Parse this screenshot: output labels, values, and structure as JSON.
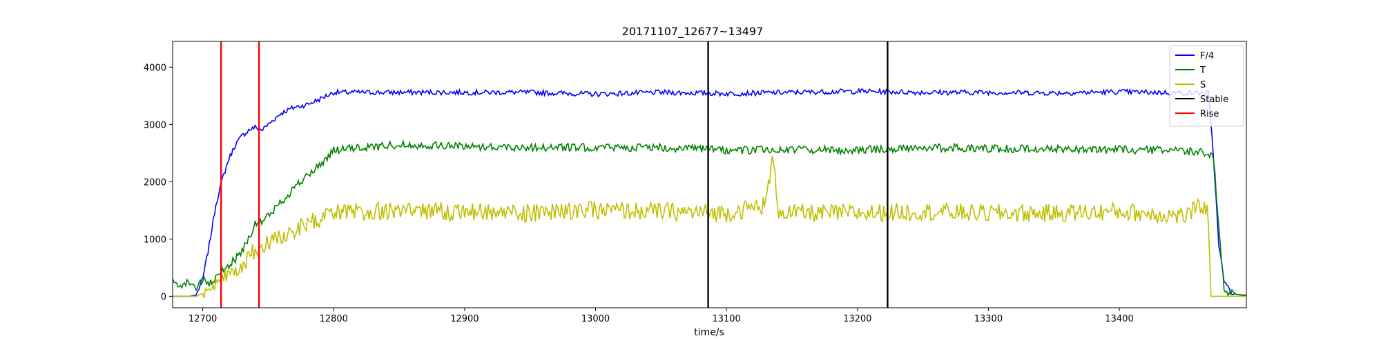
{
  "chart_data": {
    "type": "line",
    "title": "20171107_12677~13497",
    "xlabel": "time/s",
    "ylabel": "",
    "xlim": [
      12677,
      13497
    ],
    "ylim": [
      -200,
      4450
    ],
    "x_ticks": [
      12700,
      12800,
      12900,
      13000,
      13100,
      13200,
      13300,
      13400
    ],
    "x_tick_labels": [
      "12700",
      "12800",
      "12900",
      "13000",
      "13100",
      "13200",
      "13300",
      "13400"
    ],
    "y_ticks": [
      0,
      1000,
      2000,
      3000,
      4000
    ],
    "y_tick_labels": [
      "0",
      "1000",
      "2000",
      "3000",
      "4000"
    ],
    "grid": false,
    "legend_position": "top-right",
    "series": [
      {
        "name": "F/4",
        "color": "#0000ff",
        "x": [
          12677,
          12690,
          12695,
          12700,
          12705,
          12710,
          12715,
          12720,
          12725,
          12730,
          12735,
          12740,
          12745,
          12750,
          12755,
          12760,
          12770,
          12780,
          12790,
          12800,
          12850,
          12900,
          12950,
          13000,
          13050,
          13100,
          13150,
          13200,
          13250,
          13300,
          13350,
          13400,
          13450,
          13468,
          13472,
          13476,
          13480,
          13485,
          13490,
          13497
        ],
        "y": [
          0,
          0,
          20,
          300,
          900,
          1600,
          2050,
          2400,
          2650,
          2800,
          2900,
          2950,
          2900,
          3000,
          3100,
          3200,
          3300,
          3350,
          3450,
          3560,
          3560,
          3560,
          3560,
          3530,
          3560,
          3540,
          3560,
          3580,
          3560,
          3560,
          3550,
          3570,
          3550,
          3550,
          2400,
          900,
          250,
          80,
          30,
          10
        ]
      },
      {
        "name": "T",
        "color": "#008000",
        "x": [
          12677,
          12685,
          12690,
          12695,
          12700,
          12705,
          12710,
          12715,
          12720,
          12725,
          12730,
          12740,
          12745,
          12750,
          12760,
          12770,
          12780,
          12790,
          12800,
          12850,
          12900,
          12950,
          13000,
          13050,
          13100,
          13150,
          13200,
          13250,
          13300,
          13350,
          13400,
          13450,
          13468,
          13472,
          13476,
          13480,
          13490,
          13497
        ],
        "y": [
          250,
          200,
          260,
          150,
          280,
          200,
          300,
          450,
          550,
          650,
          800,
          1250,
          1300,
          1400,
          1650,
          1900,
          2100,
          2300,
          2550,
          2650,
          2620,
          2600,
          2600,
          2600,
          2550,
          2560,
          2550,
          2600,
          2580,
          2570,
          2560,
          2540,
          2500,
          2400,
          1200,
          100,
          30,
          20
        ]
      },
      {
        "name": "S",
        "color": "#bfbf00",
        "x": [
          12677,
          12695,
          12700,
          12705,
          12710,
          12715,
          12720,
          12730,
          12740,
          12745,
          12750,
          12760,
          12770,
          12780,
          12790,
          12800,
          12850,
          12900,
          12950,
          13000,
          13050,
          13100,
          13130,
          13135,
          13140,
          13150,
          13200,
          13250,
          13300,
          13350,
          13400,
          13450,
          13465,
          13468,
          13470,
          13480,
          13497
        ],
        "y": [
          0,
          0,
          50,
          100,
          150,
          250,
          400,
          550,
          800,
          900,
          950,
          1050,
          1150,
          1250,
          1350,
          1450,
          1500,
          1480,
          1450,
          1500,
          1480,
          1450,
          1600,
          2400,
          1500,
          1450,
          1450,
          1480,
          1450,
          1450,
          1480,
          1400,
          1600,
          1400,
          0,
          0,
          0
        ]
      }
    ],
    "vertical_lines": [
      {
        "name": "Rise",
        "color": "#ff0000",
        "x": [
          12714,
          12743
        ]
      },
      {
        "name": "Stable",
        "color": "#000000",
        "x": [
          13086,
          13223
        ]
      }
    ],
    "legend": [
      {
        "label": "F/4",
        "color": "#0000ff"
      },
      {
        "label": "T",
        "color": "#008000"
      },
      {
        "label": "S",
        "color": "#bfbf00"
      },
      {
        "label": "Stable",
        "color": "#000000"
      },
      {
        "label": "Rise",
        "color": "#ff0000"
      }
    ]
  }
}
